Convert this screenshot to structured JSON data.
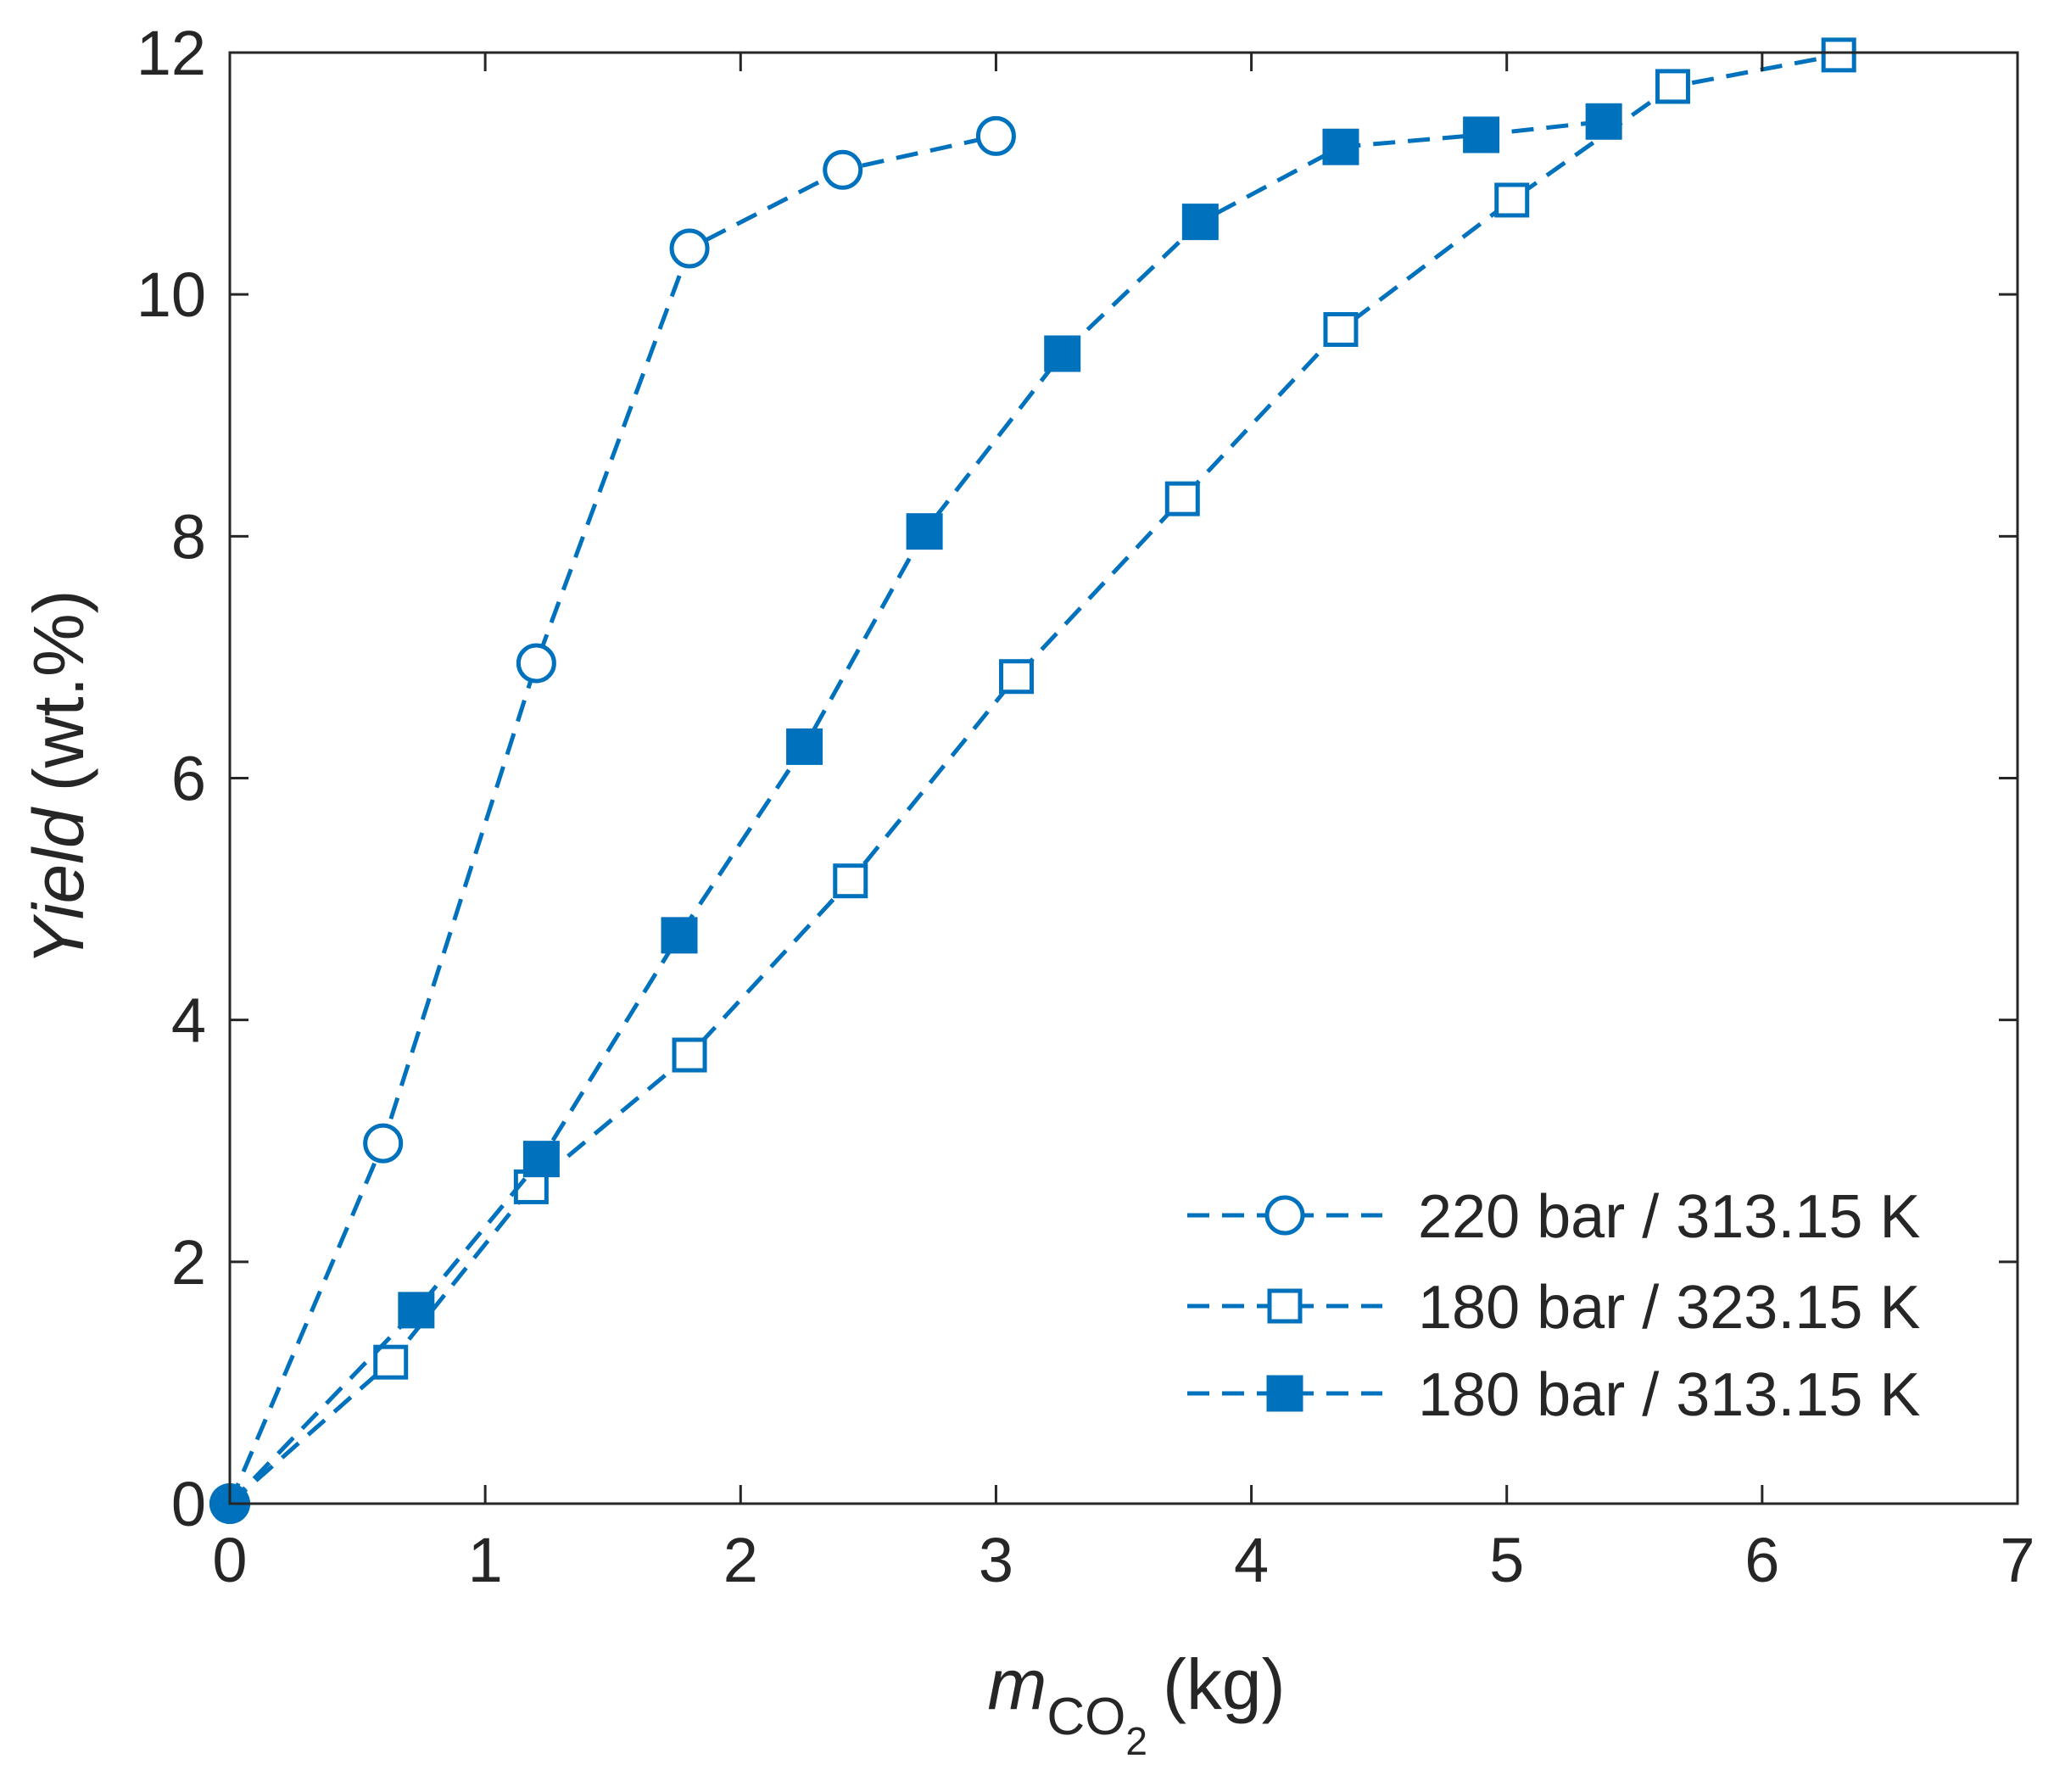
{
  "chart_data": {
    "type": "line",
    "title": "",
    "xlabel": {
      "prefix": "m",
      "subscript_main": "CO",
      "subscript_sub": "2",
      "unit": "(kg)"
    },
    "ylabel": {
      "italic": "Yield",
      "unit": "(wt.%)"
    },
    "xlim": [
      0,
      7
    ],
    "ylim": [
      0,
      12
    ],
    "xticks": [
      0,
      1,
      2,
      3,
      4,
      5,
      6,
      7
    ],
    "yticks": [
      0,
      2,
      4,
      6,
      8,
      10,
      12
    ],
    "grid": false,
    "legend_position": "bottom-right",
    "series": [
      {
        "name": "220 bar / 313.15 K",
        "marker": "open-circle",
        "line": "dashed",
        "color": "#0072BD",
        "x": [
          0,
          0.6,
          1.2,
          1.8,
          2.4,
          3.0
        ],
        "y": [
          0,
          2.98,
          6.95,
          10.38,
          11.03,
          11.31
        ]
      },
      {
        "name": "180 bar / 323.15 K",
        "marker": "open-square",
        "line": "dashed",
        "color": "#0072BD",
        "x": [
          0,
          0.63,
          1.18,
          1.8,
          2.43,
          3.08,
          3.73,
          4.35,
          5.02,
          5.65,
          6.3
        ],
        "y": [
          0,
          1.17,
          2.62,
          3.71,
          5.15,
          6.84,
          8.31,
          9.71,
          10.78,
          11.72,
          11.98
        ]
      },
      {
        "name": "180 bar / 313.15 K",
        "marker": "filled-square",
        "line": "dashed",
        "color": "#0072BD",
        "x": [
          0,
          0.73,
          1.22,
          1.76,
          2.25,
          2.72,
          3.26,
          3.8,
          4.35,
          4.9,
          5.38
        ],
        "y": [
          0,
          1.6,
          2.85,
          4.7,
          6.26,
          8.04,
          9.51,
          10.6,
          11.22,
          11.32,
          11.43
        ]
      }
    ]
  }
}
